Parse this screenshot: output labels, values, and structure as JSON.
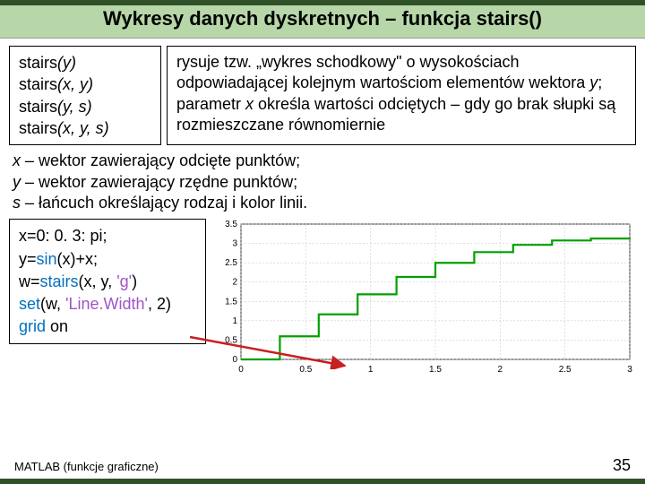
{
  "title": "Wykresy danych dyskretnych – funkcja stairs()",
  "syntax": {
    "l1_fn": "stairs",
    "l1_args": "(y)",
    "l2_fn": "stairs",
    "l2_args": "(x, y)",
    "l3_fn": "stairs",
    "l3_args": "(y, s)",
    "l4_fn": "stairs",
    "l4_args": "(x, y, s)"
  },
  "description": {
    "pre": "rysuje tzw. „wykres schodkowy\" o wysokościach odpowiadającej kolejnym wartościom elementów wektora ",
    "y": "y",
    "mid": ";  parametr ",
    "x": "x",
    "post": " określa wartości odciętych – gdy go brak słupki są rozmieszczane  równomiernie"
  },
  "defs": {
    "x_var": "x",
    "x_txt": " – wektor zawierający odcięte  punktów;",
    "y_var": "y",
    "y_txt": " – wektor zawierający rzędne  punktów;",
    "s_var": "s",
    "s_txt": " – łańcuch określający rodzaj i kolor linii."
  },
  "code": {
    "l1": "x=0: 0. 3: pi;",
    "l2_pre": "y=",
    "l2_fn": "sin",
    "l2_post": "(x)+x;",
    "l3_pre": "w=",
    "l3_fn": "stairs",
    "l3_mid": "(x, y, ",
    "l3_str": "'g'",
    "l3_end": ")",
    "l4_fn": "set",
    "l4_mid": "(w, ",
    "l4_str": "'Line.Width'",
    "l4_end": ", 2)",
    "l5_fn": "grid",
    "l5_arg": " on"
  },
  "chart": {
    "xlim": [
      0,
      3
    ],
    "ylim": [
      0,
      3.5
    ],
    "xticks": [
      0,
      0.5,
      1,
      1.5,
      2,
      2.5,
      3
    ],
    "yticks": [
      0,
      0.5,
      1,
      1.5,
      2,
      2.5,
      3,
      3.5
    ],
    "line_color": "#00a000",
    "grid_color": "#c0c0c0",
    "bg_color": "#ffffff",
    "x": [
      0,
      0.3,
      0.6,
      0.9,
      1.2,
      1.5,
      1.8,
      2.1,
      2.4,
      2.7,
      3.0
    ],
    "y": [
      0,
      0.596,
      1.165,
      1.683,
      2.132,
      2.497,
      2.774,
      2.963,
      3.075,
      3.127,
      3.141
    ]
  },
  "arrow_color": "#c82020",
  "footer_left": "MATLAB (funkcje graficzne)",
  "footer_page": "35"
}
